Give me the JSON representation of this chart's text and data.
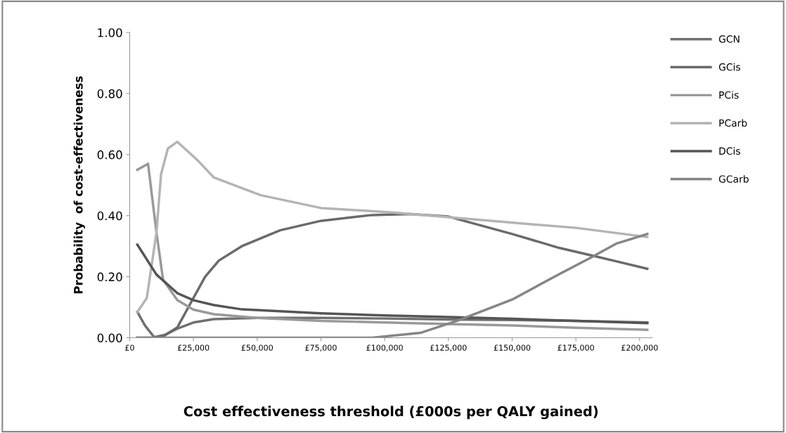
{
  "chart_data": {
    "type": "line",
    "xlabel": "Cost effectiveness threshold (£000s per QALY gained)",
    "ylabel": "Probability  of cost-effectiveness",
    "xlim": [
      0,
      205000
    ],
    "ylim": [
      0,
      1
    ],
    "xticks": [
      {
        "value": 0,
        "label": "£0"
      },
      {
        "value": 25000,
        "label": "£25,000"
      },
      {
        "value": 50000,
        "label": "£50,000"
      },
      {
        "value": 75000,
        "label": "£75,000"
      },
      {
        "value": 100000,
        "label": "£100,000"
      },
      {
        "value": 125000,
        "label": "£125,000"
      },
      {
        "value": 150000,
        "label": "£150,000"
      },
      {
        "value": 175000,
        "label": "£175,000"
      },
      {
        "value": 200000,
        "label": "£200,000"
      }
    ],
    "yticks": [
      {
        "value": 0,
        "label": "0.00"
      },
      {
        "value": 0.2,
        "label": "0.20"
      },
      {
        "value": 0.4,
        "label": "0.40"
      },
      {
        "value": 0.6,
        "label": "0.60"
      },
      {
        "value": 0.8,
        "label": "0.80"
      },
      {
        "value": 1,
        "label": "1.00"
      }
    ],
    "grid": false,
    "legend": "right",
    "marker": "none",
    "line_style": "solid",
    "series": [
      {
        "name": "GCN",
        "color": "#707070",
        "x": [
          3000,
          6000,
          9600,
          14000,
          18700,
          25000,
          33000,
          50000,
          75000,
          100000,
          125000,
          150000,
          175000,
          203000
        ],
        "values": [
          0.085,
          0.04,
          0.002,
          0.01,
          0.03,
          0.05,
          0.061,
          0.065,
          0.065,
          0.063,
          0.06,
          0.058,
          0.055,
          0.05
        ]
      },
      {
        "name": "GCis",
        "color": "#6a6a6a",
        "x": [
          3000,
          9000,
          13000,
          18700,
          24000,
          29600,
          35000,
          44000,
          59000,
          75000,
          95000,
          110000,
          125000,
          150000,
          168600,
          181000,
          191000,
          203000
        ],
        "values": [
          0,
          0,
          0.004,
          0.034,
          0.115,
          0.2,
          0.253,
          0.3,
          0.352,
          0.383,
          0.402,
          0.405,
          0.397,
          0.34,
          0.294,
          0.27,
          0.25,
          0.226
        ]
      },
      {
        "name": "PCis",
        "color": "#999999",
        "x": [
          3000,
          7200,
          10500,
          13100,
          18700,
          25000,
          33000,
          50000,
          75000,
          100000,
          125000,
          150000,
          175000,
          203000
        ],
        "values": [
          0.55,
          0.57,
          0.345,
          0.19,
          0.123,
          0.092,
          0.077,
          0.065,
          0.055,
          0.05,
          0.045,
          0.04,
          0.033,
          0.026
        ]
      },
      {
        "name": "PCarb",
        "color": "#b4b4b4",
        "x": [
          3000,
          6700,
          10500,
          12300,
          15000,
          18700,
          26800,
          33000,
          51300,
          75000,
          104000,
          125000,
          148600,
          175000,
          203000
        ],
        "values": [
          0.084,
          0.13,
          0.345,
          0.536,
          0.62,
          0.642,
          0.58,
          0.525,
          0.467,
          0.425,
          0.41,
          0.395,
          0.378,
          0.36,
          0.33
        ]
      },
      {
        "name": "DCis",
        "color": "#555555",
        "x": [
          3000,
          10500,
          18700,
          25000,
          33000,
          44000,
          75000,
          100000,
          125000,
          150000,
          175000,
          203000
        ],
        "values": [
          0.305,
          0.207,
          0.146,
          0.123,
          0.107,
          0.093,
          0.08,
          0.073,
          0.068,
          0.062,
          0.055,
          0.048
        ]
      },
      {
        "name": "GCarb",
        "color": "#858585",
        "x": [
          3000,
          50000,
          95000,
          114000,
          128600,
          150000,
          168600,
          181000,
          191000,
          203000
        ],
        "values": [
          0,
          0,
          0,
          0.016,
          0.056,
          0.125,
          0.209,
          0.263,
          0.309,
          0.34
        ]
      }
    ]
  }
}
